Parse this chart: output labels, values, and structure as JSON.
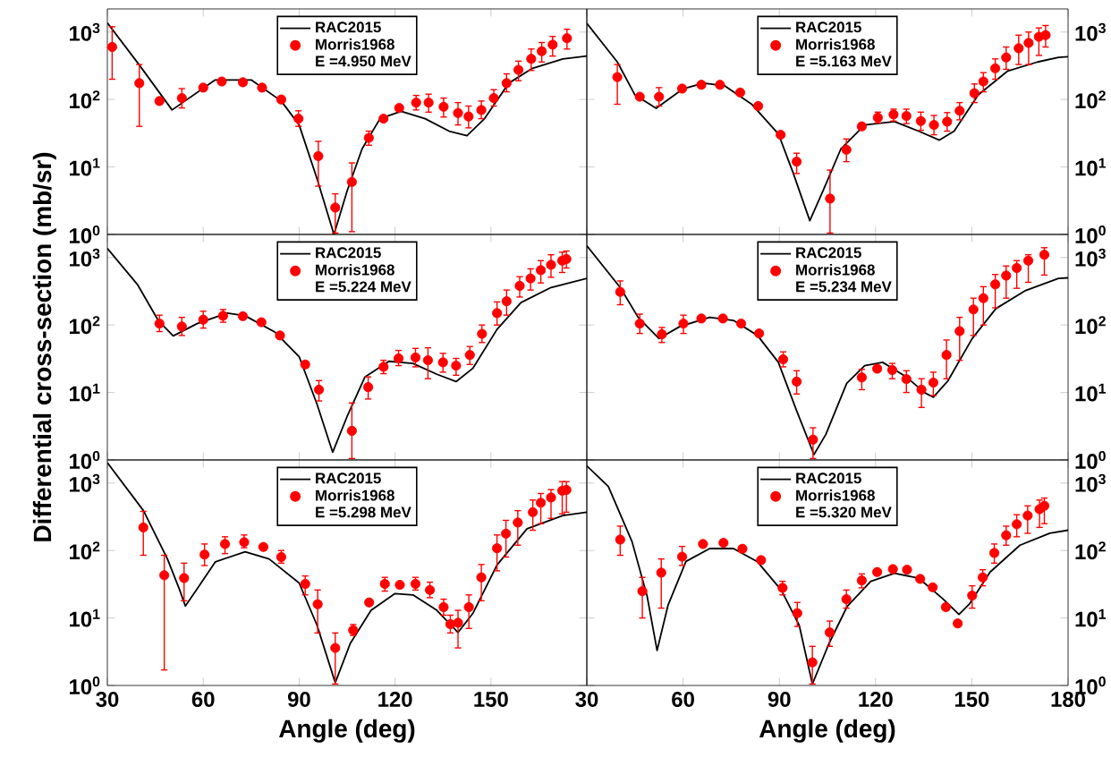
{
  "chart_data": [
    {
      "type": "line",
      "log": "y",
      "legend": "top",
      "tick_labels": "y",
      "annotations": [
        "E =4.950 MeV"
      ],
      "xlim": [
        30,
        180
      ],
      "ylim": [
        1,
        2200
      ],
      "xticks": [
        30,
        60,
        90,
        120,
        150,
        180
      ],
      "yticks": [
        {
          "value": 1,
          "label": "10$^{0}$"
        },
        {
          "value": 10,
          "label": "10$^{1}$"
        },
        {
          "value": 100,
          "label": "10$^{2}$"
        },
        {
          "value": 1000,
          "label": "10$^{3}$"
        }
      ],
      "series": [
        {
          "name": "RAC2015",
          "color": "#000000",
          "marker": "none",
          "line_style": "solid",
          "x": [
            30,
            40,
            50.25,
            63.75,
            75,
            84.4,
            90,
            95.6,
            100.9,
            105,
            109.7,
            115.3,
            121.9,
            129.4,
            136.9,
            142.5,
            148,
            155.6,
            163,
            172.5,
            180
          ],
          "values": [
            1370,
            325,
            70,
            195,
            195,
            95,
            42,
            6.7,
            1,
            4.4,
            18.6,
            52,
            67,
            52,
            34,
            29,
            52,
            175,
            290,
            400,
            440
          ]
        },
        {
          "name": "Morris1968",
          "type": "scatter",
          "color": "#ff0000",
          "marker": "circle",
          "x": [
            31.5,
            40,
            46.3,
            53.3,
            60,
            65.8,
            72.4,
            78.4,
            84.4,
            89.8,
            96,
            101.3,
            106.5,
            111.8,
            116.4,
            121.3,
            126.6,
            130.5,
            135.2,
            139.7,
            143,
            147,
            150.9,
            154.9,
            158.6,
            162.6,
            165.9,
            169.3,
            173.8
          ],
          "values": [
            600,
            175,
            95,
            105,
            150,
            185,
            180,
            150,
            100,
            52,
            14.5,
            2.5,
            6,
            27,
            52,
            75,
            90,
            90,
            78,
            63,
            56,
            70,
            105,
            175,
            275,
            400,
            520,
            650,
            810
          ],
          "errors": [
            [
              200,
              1200
            ],
            [
              40,
              330
            ],
            null,
            [
              75,
              145
            ],
            null,
            null,
            null,
            null,
            null,
            [
              40,
              68
            ],
            [
              5.2,
              24
            ],
            [
              1.05,
              4
            ],
            [
              1.1,
              11.5
            ],
            [
              21,
              34
            ],
            null,
            null,
            [
              70,
              115
            ],
            [
              65,
              120
            ],
            [
              55,
              105
            ],
            [
              42,
              90
            ],
            [
              38,
              80
            ],
            [
              52,
              95
            ],
            [
              80,
              140
            ],
            [
              130,
              240
            ],
            [
              190,
              370
            ],
            [
              270,
              560
            ],
            [
              360,
              700
            ],
            [
              440,
              860
            ],
            [
              560,
              1100
            ]
          ]
        }
      ]
    },
    {
      "type": "line",
      "log": "y",
      "legend": "top",
      "tick_labels": "y",
      "annotations": [
        "E =5.163 MeV"
      ],
      "xlim": [
        30,
        180
      ],
      "ylim": [
        1,
        2200
      ],
      "xticks": [
        30,
        60,
        90,
        120,
        150,
        180
      ],
      "yticks": [
        {
          "value": 1,
          "label": "10$^{0}$"
        },
        {
          "value": 10,
          "label": "10$^{1}$"
        },
        {
          "value": 100,
          "label": "10$^{2}$"
        },
        {
          "value": 1000,
          "label": "10$^{3}$"
        }
      ],
      "series": [
        {
          "name": "RAC2015",
          "color": "#000000",
          "marker": "none",
          "line_style": "solid",
          "x": [
            30,
            39.5,
            45,
            51.6,
            59.9,
            66.4,
            72.9,
            81.3,
            89.7,
            94.3,
            99.5,
            103.6,
            109.2,
            116.6,
            125.9,
            133.4,
            139.9,
            144.5,
            152,
            161.2,
            170.5,
            177,
            180
          ],
          "values": [
            1350,
            360,
            117,
            74,
            143,
            175,
            160,
            86,
            31,
            8.2,
            1.6,
            4.4,
            18.6,
            42,
            47,
            34,
            25,
            34,
            117,
            265,
            360,
            420,
            430
          ]
        },
        {
          "name": "Morris1968",
          "type": "scatter",
          "color": "#ff0000",
          "marker": "circle",
          "x": [
            39.5,
            46.5,
            52.5,
            59.7,
            65.7,
            71.5,
            77.8,
            83.4,
            90.4,
            95.4,
            105.8,
            110.9,
            115.7,
            120.7,
            125.6,
            129.6,
            134.1,
            138.2,
            142.3,
            146.2,
            150.8,
            153.6,
            157.3,
            160.7,
            164.6,
            167.7,
            170.9,
            173
          ],
          "values": [
            215,
            110,
            110,
            145,
            165,
            165,
            127,
            80,
            30,
            12,
            3.4,
            18,
            40,
            54,
            60,
            57,
            48,
            42,
            47,
            68,
            124,
            185,
            290,
            420,
            575,
            690,
            850,
            900
          ],
          "errors": [
            [
              85,
              330
            ],
            null,
            [
              80,
              150
            ],
            null,
            null,
            null,
            null,
            null,
            null,
            [
              8,
              16
            ],
            [
              1.05,
              9
            ],
            [
              12,
              26
            ],
            null,
            [
              45,
              65
            ],
            [
              48,
              72
            ],
            [
              44,
              72
            ],
            [
              35,
              65
            ],
            [
              30,
              58
            ],
            [
              34,
              64
            ],
            [
              50,
              90
            ],
            [
              90,
              170
            ],
            [
              130,
              250
            ],
            [
              200,
              400
            ],
            [
              280,
              600
            ],
            [
              330,
              900
            ],
            [
              330,
              1000
            ],
            [
              450,
              1150
            ],
            [
              600,
              1250
            ]
          ]
        }
      ]
    },
    {
      "type": "line",
      "log": "y",
      "legend": "top",
      "tick_labels": "y",
      "ylabel": "Differential cross-section (mb/sr)",
      "annotations": [
        "E =5.224 MeV"
      ],
      "xlim": [
        30,
        180
      ],
      "ylim": [
        1,
        2200
      ],
      "xticks": [
        30,
        60,
        90,
        120,
        150,
        180
      ],
      "yticks": [
        {
          "value": 1,
          "label": "10$^{0}$"
        },
        {
          "value": 10,
          "label": "10$^{1}$"
        },
        {
          "value": 100,
          "label": "10$^{2}$"
        },
        {
          "value": 1000,
          "label": "10$^{3}$"
        }
      ],
      "series": [
        {
          "name": "RAC2015",
          "color": "#000000",
          "marker": "none",
          "line_style": "solid",
          "x": [
            30,
            39.4,
            45.9,
            50.6,
            58.1,
            67.5,
            73.1,
            82.5,
            90,
            95.6,
            100.5,
            105,
            110.6,
            118.1,
            125.6,
            133.1,
            139.1,
            144.4,
            151.9,
            159.4,
            168.8,
            180
          ],
          "values": [
            1370,
            400,
            117,
            69,
            105,
            150,
            137,
            78,
            34,
            6.7,
            1.3,
            4.4,
            17,
            29,
            27,
            18.6,
            14.5,
            23,
            86,
            215,
            360,
            490
          ]
        },
        {
          "name": "Morris1968",
          "type": "scatter",
          "color": "#ff0000",
          "marker": "circle",
          "x": [
            46.3,
            53.3,
            60,
            66.2,
            72.4,
            78.2,
            84,
            91.9,
            96.2,
            106.5,
            111.6,
            116.4,
            121.1,
            126.4,
            130.3,
            135,
            139.1,
            143.4,
            147.2,
            151.9,
            154.9,
            159,
            162.4,
            165.6,
            168.8,
            172.3,
            173.6
          ],
          "values": [
            105,
            95,
            120,
            137,
            135,
            110,
            70,
            26,
            11,
            2.7,
            12,
            24,
            32,
            33,
            30,
            28,
            25,
            36,
            74,
            150,
            225,
            380,
            490,
            650,
            780,
            900,
            950
          ],
          "errors": [
            [
              80,
              140
            ],
            [
              70,
              130
            ],
            [
              90,
              160
            ],
            [
              110,
              170
            ],
            null,
            null,
            null,
            null,
            [
              7.5,
              15
            ],
            [
              1.05,
              7
            ],
            [
              8,
              17
            ],
            [
              19,
              30
            ],
            [
              25,
              42
            ],
            [
              24,
              45
            ],
            [
              16,
              46
            ],
            [
              20,
              38
            ],
            [
              18,
              32
            ],
            [
              26,
              48
            ],
            [
              55,
              100
            ],
            [
              100,
              220
            ],
            [
              140,
              330
            ],
            [
              260,
              520
            ],
            [
              330,
              680
            ],
            [
              420,
              900
            ],
            [
              510,
              1100
            ],
            [
              600,
              1200
            ],
            [
              700,
              1250
            ]
          ]
        }
      ]
    },
    {
      "type": "line",
      "log": "y",
      "legend": "top",
      "tick_labels": "y",
      "annotations": [
        "E =5.234 MeV"
      ],
      "xlim": [
        30,
        180
      ],
      "ylim": [
        1,
        2200
      ],
      "xticks": [
        30,
        60,
        90,
        120,
        150,
        180
      ],
      "yticks": [
        {
          "value": 1,
          "label": "10$^{0}$"
        },
        {
          "value": 10,
          "label": "10$^{1}$"
        },
        {
          "value": 100,
          "label": "10$^{2}$"
        },
        {
          "value": 1000,
          "label": "10$^{3}$"
        }
      ],
      "series": [
        {
          "name": "RAC2015",
          "color": "#000000",
          "marker": "none",
          "line_style": "solid",
          "x": [
            30,
            40.4,
            46,
            52.5,
            59,
            68.3,
            75.7,
            83.2,
            89.7,
            95.3,
            100.8,
            104.5,
            111,
            116.6,
            122.2,
            129.6,
            135.2,
            138,
            142.6,
            150.1,
            157.5,
            166.8,
            177,
            180
          ],
          "values": [
            1500,
            360,
            130,
            63,
            95,
            130,
            117,
            70,
            28,
            5.5,
            1.2,
            2.4,
            13.7,
            25,
            28,
            17,
            10,
            8.5,
            15,
            63,
            175,
            325,
            490,
            500
          ]
        },
        {
          "name": "Morris1968",
          "type": "scatter",
          "color": "#ff0000",
          "marker": "circle",
          "x": [
            40.4,
            46.5,
            53.4,
            60.1,
            65.7,
            72.4,
            78.1,
            83.7,
            91.2,
            95.4,
            100.5,
            115.7,
            120.5,
            125.2,
            129.6,
            134.3,
            138,
            142.1,
            146.2,
            150.5,
            153.6,
            157.3,
            160.7,
            164,
            167.6,
            172.6
          ],
          "values": [
            310,
            105,
            73,
            105,
            125,
            125,
            105,
            75,
            31,
            14.5,
            2,
            16.7,
            22.5,
            21.5,
            15.8,
            11,
            14,
            36,
            81,
            170,
            250,
            400,
            540,
            700,
            900,
            1100
          ],
          "errors": [
            [
              200,
              450
            ],
            [
              75,
              145
            ],
            [
              55,
              92
            ],
            [
              75,
              140
            ],
            null,
            null,
            null,
            null,
            [
              24,
              40
            ],
            [
              9.5,
              21
            ],
            [
              1.05,
              3
            ],
            [
              11,
              22
            ],
            null,
            [
              16,
              27
            ],
            [
              10,
              21
            ],
            [
              6,
              16
            ],
            [
              9,
              20
            ],
            [
              16,
              60
            ],
            [
              30,
              130
            ],
            [
              70,
              250
            ],
            [
              100,
              370
            ],
            [
              180,
              560
            ],
            [
              250,
              750
            ],
            [
              350,
              900
            ],
            [
              430,
              1100
            ],
            [
              550,
              1400
            ]
          ]
        }
      ]
    },
    {
      "type": "line",
      "log": "y",
      "legend": "top",
      "xlabel": "Angle (deg)",
      "annotations": [
        "E =5.298 MeV"
      ],
      "xlim": [
        30,
        180
      ],
      "ylim": [
        1,
        2200
      ],
      "xticks": [
        30,
        60,
        90,
        120,
        150,
        {
          "value": 180,
          "label": null
        }
      ],
      "yticks": [
        {
          "value": 1,
          "label": "10$^{0}$"
        },
        {
          "value": 10,
          "label": "10$^{1}$"
        },
        {
          "value": 100,
          "label": "10$^{2}$"
        },
        {
          "value": 1000,
          "label": "10$^{3}$"
        }
      ],
      "series": [
        {
          "name": "RAC2015",
          "color": "#000000",
          "marker": "none",
          "line_style": "solid",
          "x": [
            30,
            41.3,
            48.8,
            52.5,
            54.4,
            58.1,
            63.8,
            73.1,
            80.6,
            90,
            95.6,
            101.3,
            106,
            112.5,
            120,
            125.6,
            133.1,
            139.7,
            144.4,
            151.9,
            161.3,
            172.5,
            180
          ],
          "values": [
            2000,
            390,
            75,
            27,
            15,
            27,
            68,
            96,
            75,
            33,
            7.8,
            1.1,
            4.2,
            13,
            23,
            22,
            13,
            6.1,
            11.8,
            61,
            210,
            330,
            370
          ]
        },
        {
          "name": "Morris1968",
          "type": "scatter",
          "color": "#ff0000",
          "marker": "circle",
          "x": [
            41.25,
            47.8,
            54,
            60.4,
            66.8,
            72.8,
            78.8,
            84.4,
            91.9,
            95.8,
            101.3,
            106.9,
            111.9,
            116.8,
            121.5,
            126.4,
            130.9,
            135.2,
            137.3,
            139.7,
            143.1,
            147,
            151.9,
            154.7,
            158.4,
            163.1,
            165.6,
            168.8,
            172.3,
            173.6
          ],
          "values": [
            220,
            43,
            39,
            87,
            125,
            133,
            113,
            80,
            32,
            16,
            3.6,
            6.6,
            17,
            32,
            31,
            32,
            26,
            14.5,
            8.1,
            8.5,
            14.5,
            40,
            108,
            178,
            260,
            370,
            510,
            610,
            770,
            790
          ],
          "errors": [
            [
              85,
              380
            ],
            [
              1.7,
              85
            ],
            [
              18,
              65
            ],
            [
              60,
              125
            ],
            [
              90,
              160
            ],
            [
              110,
              170
            ],
            null,
            [
              65,
              100
            ],
            [
              22,
              42
            ],
            [
              6,
              26
            ],
            [
              1.05,
              6
            ],
            [
              5.5,
              8
            ],
            null,
            [
              25,
              40
            ],
            null,
            [
              26,
              40
            ],
            [
              20,
              34
            ],
            [
              11,
              19
            ],
            [
              6,
              11
            ],
            [
              3.6,
              13
            ],
            [
              7,
              22
            ],
            [
              18,
              62
            ],
            [
              50,
              170
            ],
            [
              80,
              280
            ],
            [
              120,
              390
            ],
            [
              200,
              560
            ],
            [
              250,
              700
            ],
            [
              300,
              800
            ],
            [
              350,
              1050
            ],
            [
              370,
              1050
            ]
          ]
        }
      ]
    },
    {
      "type": "line",
      "log": "y",
      "legend": "top",
      "xlabel": "Angle (deg)",
      "annotations": [
        "E =5.320 MeV"
      ],
      "xlim": [
        30,
        180
      ],
      "ylim": [
        1,
        2200
      ],
      "xticks": [
        30,
        60,
        90,
        120,
        150,
        180
      ],
      "yticks": [
        {
          "value": 1,
          "label": "10$^{0}$"
        },
        {
          "value": 10,
          "label": "10$^{1}$"
        },
        {
          "value": 100,
          "label": "10$^{2}$"
        },
        {
          "value": 1000,
          "label": "10$^{3}$"
        }
      ],
      "series": [
        {
          "name": "RAC2015",
          "color": "#000000",
          "marker": "none",
          "line_style": "solid",
          "x": [
            30,
            36.7,
            44.1,
            48.8,
            51.9,
            55.3,
            60.9,
            68.3,
            75.7,
            83.2,
            90.6,
            96.2,
            100.3,
            105.5,
            111.1,
            118.5,
            125.9,
            133.4,
            140.8,
            146,
            149.2,
            155.7,
            165,
            174.3,
            180
          ],
          "values": [
            1800,
            890,
            135,
            21,
            3.3,
            15.4,
            69,
            107,
            107,
            68,
            26,
            7.8,
            1.05,
            4.2,
            14.7,
            35,
            46,
            39,
            19.6,
            11.3,
            16,
            48,
            120,
            180,
            200
          ]
        },
        {
          "name": "Morris1968",
          "type": "scatter",
          "color": "#ff0000",
          "marker": "circle",
          "x": [
            40.4,
            47.3,
            53.2,
            59.7,
            66.2,
            72.6,
            78.5,
            84.3,
            91,
            95.6,
            100.3,
            105.7,
            110.9,
            115.7,
            120.5,
            125.4,
            129.8,
            133.9,
            137.8,
            141.9,
            145.6,
            150.1,
            153.4,
            157,
            160.7,
            164,
            167.4,
            171.1,
            172.6
          ],
          "values": [
            145,
            25,
            47,
            81,
            125,
            130,
            106,
            72,
            28,
            11.8,
            2.2,
            6.1,
            19,
            36,
            48,
            53,
            52,
            38,
            28.5,
            14.5,
            8.3,
            21.5,
            40,
            92,
            168,
            245,
            330,
            410,
            460
          ],
          "errors": [
            [
              85,
              230
            ],
            [
              10,
              40
            ],
            [
              14,
              75
            ],
            [
              60,
              115
            ],
            null,
            null,
            null,
            null,
            [
              22,
              35
            ],
            [
              7.5,
              17
            ],
            [
              1.05,
              3.8
            ],
            [
              3.8,
              9
            ],
            [
              14,
              26
            ],
            [
              28,
              45
            ],
            null,
            null,
            null,
            null,
            null,
            null,
            null,
            [
              14,
              30
            ],
            [
              30,
              52
            ],
            [
              65,
              125
            ],
            [
              120,
              230
            ],
            [
              160,
              340
            ],
            [
              180,
              460
            ],
            [
              220,
              560
            ],
            [
              250,
              600
            ]
          ]
        }
      ]
    }
  ]
}
